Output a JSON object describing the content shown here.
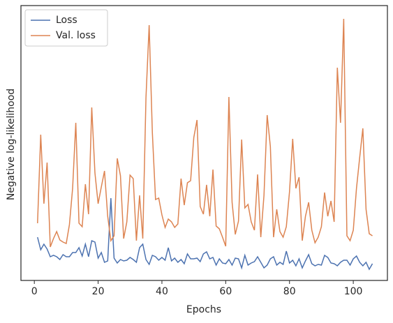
{
  "chart_data": {
    "type": "line",
    "xlabel": "Epochs",
    "ylabel": "Negative log-likelihood",
    "x": [
      1,
      2,
      3,
      4,
      5,
      6,
      7,
      8,
      9,
      10,
      11,
      12,
      13,
      14,
      15,
      16,
      17,
      18,
      19,
      20,
      21,
      22,
      23,
      24,
      25,
      26,
      27,
      28,
      29,
      30,
      31,
      32,
      33,
      34,
      35,
      36,
      37,
      38,
      39,
      40,
      41,
      42,
      43,
      44,
      45,
      46,
      47,
      48,
      49,
      50,
      51,
      52,
      53,
      54,
      55,
      56,
      57,
      58,
      59,
      60,
      61,
      62,
      63,
      64,
      65,
      66,
      67,
      68,
      69,
      70,
      71,
      72,
      73,
      74,
      75,
      76,
      77,
      78,
      79,
      80,
      81,
      82,
      83,
      84,
      85,
      86,
      87,
      88,
      89,
      90,
      91,
      92,
      93,
      94,
      95,
      96,
      97,
      98,
      99,
      100,
      101,
      102,
      103,
      104,
      105,
      106
    ],
    "series": [
      {
        "name": "Loss",
        "color": "#4c72b0",
        "values": [
          62,
          44,
          52,
          45,
          34,
          36,
          34,
          30,
          37,
          34,
          34,
          40,
          40,
          47,
          35,
          52,
          34,
          57,
          55,
          32,
          40,
          26,
          28,
          118,
          32,
          25,
          30,
          28,
          29,
          33,
          30,
          26,
          47,
          52,
          30,
          23,
          36,
          34,
          29,
          33,
          29,
          47,
          28,
          32,
          26,
          30,
          24,
          38,
          31,
          31,
          32,
          27,
          38,
          41,
          31,
          33,
          22,
          31,
          25,
          24,
          30,
          22,
          32,
          31,
          18,
          36,
          22,
          25,
          27,
          34,
          26,
          18,
          22,
          31,
          34,
          22,
          26,
          23,
          42,
          25,
          29,
          21,
          31,
          18,
          28,
          37,
          24,
          21,
          23,
          22,
          36,
          33,
          25,
          24,
          21,
          26,
          29,
          29,
          22,
          31,
          35,
          26,
          21,
          26,
          16,
          24
        ]
      },
      {
        "name": "Val. loss",
        "color": "#dd8452",
        "values": [
          82,
          209,
          110,
          169,
          48,
          60,
          70,
          58,
          55,
          53,
          80,
          132,
          226,
          82,
          77,
          138,
          95,
          248,
          154,
          110,
          134,
          157,
          92,
          57,
          64,
          175,
          150,
          60,
          84,
          151,
          146,
          57,
          122,
          60,
          262,
          366,
          212,
          116,
          118,
          94,
          76,
          88,
          84,
          76,
          81,
          146,
          108,
          140,
          143,
          205,
          230,
          106,
          95,
          137,
          92,
          159,
          78,
          74,
          62,
          49,
          263,
          112,
          66,
          85,
          202,
          104,
          109,
          84,
          72,
          152,
          62,
          122,
          237,
          192,
          62,
          102,
          70,
          62,
          77,
          127,
          203,
          132,
          148,
          57,
          92,
          112,
          72,
          54,
          62,
          77,
          126,
          92,
          114,
          84,
          305,
          226,
          375,
          64,
          57,
          72,
          132,
          176,
          218,
          102,
          67,
          64
        ]
      }
    ],
    "xlim": [
      -4.2,
      110.7
    ],
    "xticks": [
      0,
      20,
      40,
      60,
      80,
      100
    ],
    "ylim": [
      0,
      394
    ],
    "legend": "upper-left"
  }
}
